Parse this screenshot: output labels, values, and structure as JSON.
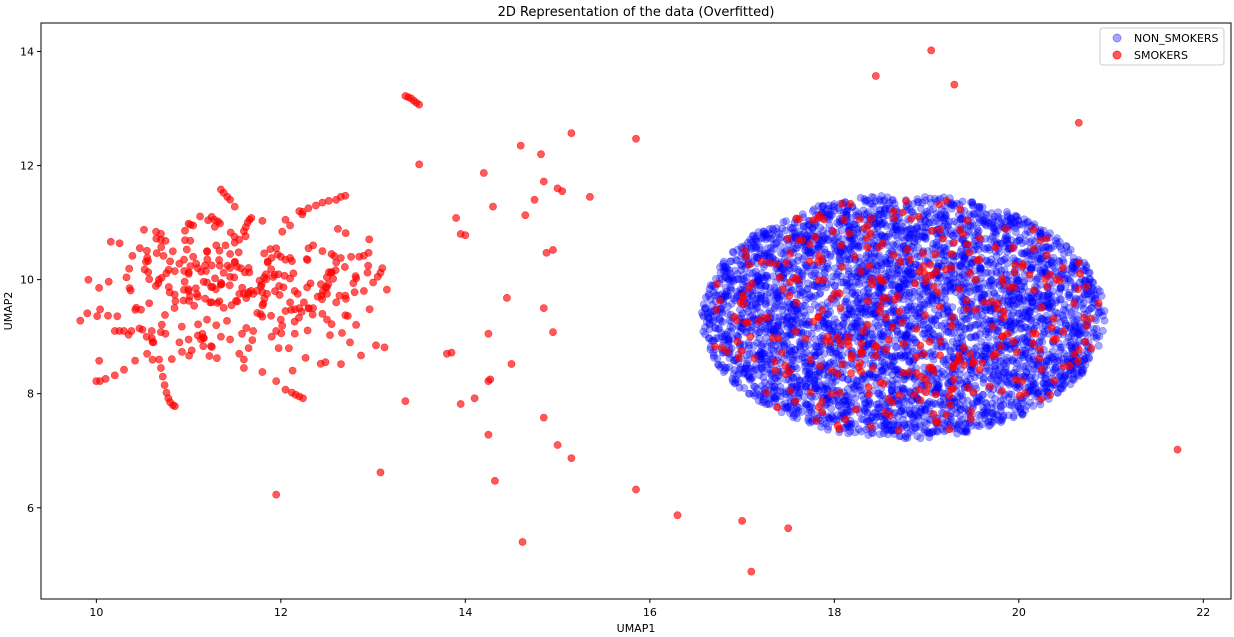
{
  "chart_data": {
    "type": "scatter",
    "title": "2D Representation of the data (Overfitted)",
    "xlabel": "UMAP1",
    "ylabel": "UMAP2",
    "xlim": [
      9.4,
      22.3
    ],
    "ylim": [
      4.4,
      14.5
    ],
    "xticks": [
      "10",
      "12",
      "14",
      "16",
      "18",
      "20",
      "22"
    ],
    "yticks": [
      "6",
      "8",
      "10",
      "12",
      "14"
    ],
    "grid": false,
    "legend_position": "top-right",
    "series": [
      {
        "name": "NON_SMOKERS",
        "color": "#0000ff",
        "alpha": 0.35,
        "distribution": {
          "kind": "uniform-ellipse",
          "center": [
            18.75,
            9.35
          ],
          "radius": [
            2.2,
            2.15
          ],
          "count": 4200
        }
      },
      {
        "name": "SMOKERS",
        "color": "#ff0000",
        "alpha": 0.65,
        "points": [
          [
            19.05,
            14.02
          ],
          [
            18.45,
            13.57
          ],
          [
            19.3,
            13.42
          ],
          [
            20.65,
            12.75
          ],
          [
            21.72,
            7.02
          ],
          [
            13.35,
            13.22
          ],
          [
            13.38,
            13.2
          ],
          [
            13.41,
            13.18
          ],
          [
            13.44,
            13.14
          ],
          [
            13.47,
            13.1
          ],
          [
            13.5,
            13.07
          ],
          [
            15.15,
            12.57
          ],
          [
            15.85,
            12.47
          ],
          [
            14.6,
            12.35
          ],
          [
            14.82,
            12.2
          ],
          [
            13.5,
            12.02
          ],
          [
            14.2,
            11.87
          ],
          [
            14.85,
            11.72
          ],
          [
            15.0,
            11.6
          ],
          [
            15.05,
            11.55
          ],
          [
            15.35,
            11.45
          ],
          [
            14.75,
            11.4
          ],
          [
            14.3,
            11.28
          ],
          [
            14.65,
            11.13
          ],
          [
            13.9,
            11.08
          ],
          [
            13.95,
            10.8
          ],
          [
            14.0,
            10.78
          ],
          [
            14.95,
            10.52
          ],
          [
            14.88,
            10.47
          ],
          [
            14.45,
            9.68
          ],
          [
            14.85,
            9.5
          ],
          [
            14.25,
            9.05
          ],
          [
            14.95,
            9.08
          ],
          [
            13.8,
            8.7
          ],
          [
            13.85,
            8.72
          ],
          [
            14.5,
            8.52
          ],
          [
            14.25,
            8.22
          ],
          [
            14.27,
            8.25
          ],
          [
            14.1,
            7.92
          ],
          [
            13.35,
            7.87
          ],
          [
            13.95,
            7.82
          ],
          [
            14.85,
            7.58
          ],
          [
            14.25,
            7.28
          ],
          [
            15.0,
            7.1
          ],
          [
            15.15,
            6.87
          ],
          [
            13.08,
            6.62
          ],
          [
            14.32,
            6.47
          ],
          [
            11.95,
            6.23
          ],
          [
            15.85,
            6.32
          ],
          [
            16.3,
            5.87
          ],
          [
            17.0,
            5.77
          ],
          [
            17.5,
            5.64
          ],
          [
            14.62,
            5.4
          ],
          [
            17.1,
            4.88
          ],
          [
            10.0,
            8.22
          ],
          [
            10.04,
            8.22
          ],
          [
            10.1,
            8.26
          ],
          [
            10.2,
            8.32
          ],
          [
            10.3,
            8.42
          ],
          [
            10.42,
            8.58
          ],
          [
            10.55,
            8.7
          ],
          [
            10.62,
            8.9
          ],
          [
            10.68,
            8.6
          ],
          [
            10.7,
            8.45
          ],
          [
            10.72,
            8.3
          ],
          [
            10.74,
            8.15
          ],
          [
            10.76,
            8.02
          ],
          [
            10.78,
            7.92
          ],
          [
            10.8,
            7.85
          ],
          [
            10.83,
            7.8
          ],
          [
            10.85,
            7.78
          ],
          [
            10.2,
            9.1
          ],
          [
            10.25,
            9.1
          ],
          [
            10.3,
            9.1
          ],
          [
            10.38,
            9.1
          ],
          [
            10.5,
            9.12
          ],
          [
            10.6,
            9.1
          ],
          [
            10.7,
            9.08
          ],
          [
            10.75,
            9.05
          ],
          [
            10.9,
            8.9
          ],
          [
            11.0,
            8.95
          ],
          [
            11.1,
            9.02
          ],
          [
            11.15,
            9.05
          ],
          [
            10.8,
            10.32
          ],
          [
            10.9,
            10.28
          ],
          [
            10.95,
            10.35
          ],
          [
            11.05,
            10.4
          ],
          [
            11.1,
            10.2
          ],
          [
            10.85,
            10.15
          ],
          [
            11.0,
            10.1
          ],
          [
            11.25,
            10.25
          ],
          [
            10.65,
            10.72
          ],
          [
            10.7,
            10.7
          ],
          [
            10.75,
            10.68
          ],
          [
            11.0,
            10.98
          ],
          [
            11.05,
            10.95
          ],
          [
            11.2,
            10.5
          ],
          [
            11.3,
            10.6
          ],
          [
            10.95,
            9.82
          ],
          [
            11.0,
            9.8
          ],
          [
            11.1,
            9.7
          ],
          [
            11.25,
            9.6
          ],
          [
            11.2,
            9.3
          ],
          [
            11.3,
            9.2
          ],
          [
            11.35,
            9.0
          ],
          [
            11.45,
            8.95
          ],
          [
            11.55,
            8.7
          ],
          [
            11.6,
            8.6
          ],
          [
            11.6,
            8.45
          ],
          [
            11.65,
            8.8
          ],
          [
            11.7,
            9.1
          ],
          [
            11.2,
            9.95
          ],
          [
            11.35,
            11.58
          ],
          [
            11.38,
            11.52
          ],
          [
            11.42,
            11.45
          ],
          [
            11.45,
            11.4
          ],
          [
            11.5,
            11.28
          ],
          [
            11.25,
            11.1
          ],
          [
            11.28,
            11.05
          ],
          [
            11.32,
            11.02
          ],
          [
            11.4,
            10.6
          ],
          [
            11.45,
            10.45
          ],
          [
            11.5,
            10.3
          ],
          [
            11.5,
            10.65
          ],
          [
            11.55,
            10.7
          ],
          [
            11.6,
            10.85
          ],
          [
            11.62,
            10.92
          ],
          [
            11.64,
            11.0
          ],
          [
            11.66,
            11.05
          ],
          [
            11.68,
            11.08
          ],
          [
            11.55,
            9.75
          ],
          [
            11.6,
            9.75
          ],
          [
            11.65,
            9.78
          ],
          [
            11.7,
            9.75
          ],
          [
            11.8,
            9.78
          ],
          [
            11.85,
            9.75
          ],
          [
            11.8,
            9.35
          ],
          [
            11.9,
            9.0
          ],
          [
            11.95,
            9.1
          ],
          [
            12.0,
            9.3
          ],
          [
            12.05,
            9.45
          ],
          [
            12.1,
            9.6
          ],
          [
            12.2,
            9.5
          ],
          [
            11.8,
            8.38
          ],
          [
            11.95,
            8.22
          ],
          [
            12.05,
            8.07
          ],
          [
            12.12,
            8.02
          ],
          [
            12.16,
            7.98
          ],
          [
            12.2,
            7.95
          ],
          [
            12.24,
            7.92
          ],
          [
            11.8,
            11.03
          ],
          [
            12.05,
            11.05
          ],
          [
            12.1,
            10.95
          ],
          [
            11.95,
            10.55
          ],
          [
            12.0,
            10.4
          ],
          [
            12.05,
            10.35
          ],
          [
            12.1,
            10.38
          ],
          [
            11.9,
            10.38
          ],
          [
            12.1,
            10.02
          ],
          [
            12.15,
            9.8
          ],
          [
            12.25,
            9.6
          ],
          [
            12.35,
            9.5
          ],
          [
            12.45,
            9.4
          ],
          [
            12.5,
            9.3
          ],
          [
            12.55,
            9.22
          ],
          [
            12.4,
            9.7
          ],
          [
            12.5,
            9.75
          ],
          [
            12.6,
            9.6
          ],
          [
            12.7,
            9.72
          ],
          [
            12.8,
            9.78
          ],
          [
            12.9,
            9.8
          ],
          [
            13.0,
            9.95
          ],
          [
            13.05,
            10.05
          ],
          [
            13.08,
            10.12
          ],
          [
            13.1,
            10.2
          ],
          [
            12.85,
            10.4
          ],
          [
            12.9,
            10.42
          ],
          [
            12.6,
            10.3
          ],
          [
            12.65,
            10.38
          ],
          [
            12.55,
            10.45
          ],
          [
            12.45,
            10.5
          ],
          [
            12.3,
            10.55
          ],
          [
            12.35,
            10.6
          ],
          [
            12.2,
            11.2
          ],
          [
            12.3,
            11.25
          ],
          [
            12.38,
            11.3
          ],
          [
            12.45,
            11.35
          ],
          [
            12.52,
            11.38
          ],
          [
            12.6,
            11.4
          ],
          [
            12.65,
            11.45
          ],
          [
            12.7,
            11.47
          ],
          [
            12.3,
            9.5
          ],
          [
            12.15,
            9.48
          ]
        ],
        "background_count": 230,
        "overlap_count": 340
      }
    ]
  }
}
